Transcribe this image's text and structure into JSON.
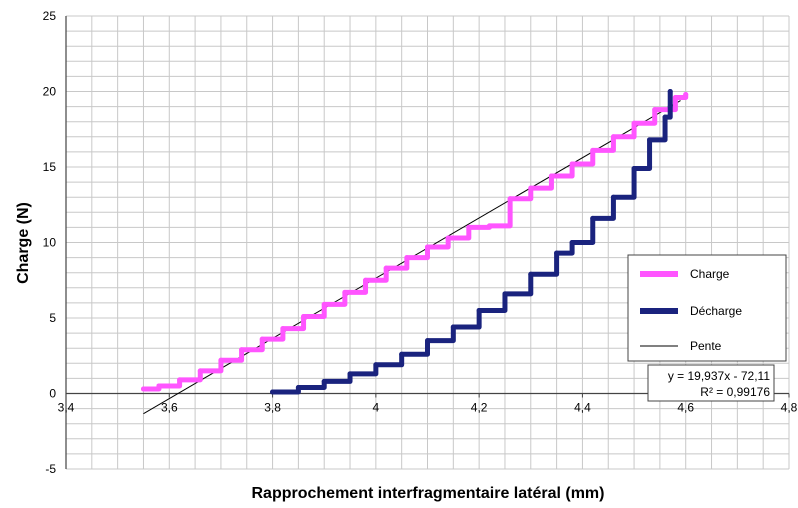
{
  "chart_data": {
    "type": "line",
    "xlabel": "Rapprochement interfragmentaire latéral (mm)",
    "ylabel": "Charge (N)",
    "xlim": [
      3.4,
      4.8
    ],
    "ylim": [
      -5,
      25
    ],
    "x_ticks": [
      "3,4",
      "3,6",
      "3,8",
      "4",
      "4,2",
      "4,4",
      "4,6",
      "4,8"
    ],
    "y_ticks": [
      "-5",
      "0",
      "5",
      "10",
      "15",
      "20",
      "25"
    ],
    "x_minor_step": 0.05,
    "y_minor_step": 1,
    "grid": true,
    "legend_position": "right",
    "series": [
      {
        "name": "Charge",
        "color": "#ff55ff",
        "x": [
          3.55,
          3.58,
          3.62,
          3.66,
          3.7,
          3.74,
          3.78,
          3.82,
          3.86,
          3.9,
          3.94,
          3.98,
          4.02,
          4.06,
          4.1,
          4.14,
          4.18,
          4.22,
          4.26,
          4.3,
          4.34,
          4.38,
          4.42,
          4.46,
          4.5,
          4.54,
          4.58,
          4.6
        ],
        "y": [
          0.3,
          0.5,
          0.9,
          1.5,
          2.2,
          2.9,
          3.6,
          4.3,
          5.1,
          5.9,
          6.7,
          7.5,
          8.3,
          9.0,
          9.7,
          10.3,
          11.0,
          11.1,
          12.9,
          13.6,
          14.4,
          15.2,
          16.1,
          17.0,
          17.9,
          18.8,
          19.6,
          19.8
        ]
      },
      {
        "name": "Décharge",
        "color": "#1a237e",
        "x": [
          3.8,
          3.85,
          3.9,
          3.95,
          4.0,
          4.05,
          4.1,
          4.15,
          4.2,
          4.25,
          4.3,
          4.35,
          4.38,
          4.42,
          4.46,
          4.5,
          4.53,
          4.56,
          4.57,
          4.57
        ],
        "y": [
          0.1,
          0.4,
          0.8,
          1.3,
          1.9,
          2.6,
          3.5,
          4.4,
          5.5,
          6.6,
          7.9,
          9.3,
          10.0,
          11.6,
          13.0,
          14.9,
          16.8,
          18.3,
          19.0,
          20.0
        ]
      }
    ],
    "trendline": {
      "name": "Pente",
      "color": "#000000",
      "slope": 19.937,
      "intercept": -72.11,
      "x_range": [
        3.55,
        4.59
      ]
    },
    "annotation": {
      "line1": "y = 19,937x - 72,11",
      "line2": "R² = 0,99176"
    }
  }
}
